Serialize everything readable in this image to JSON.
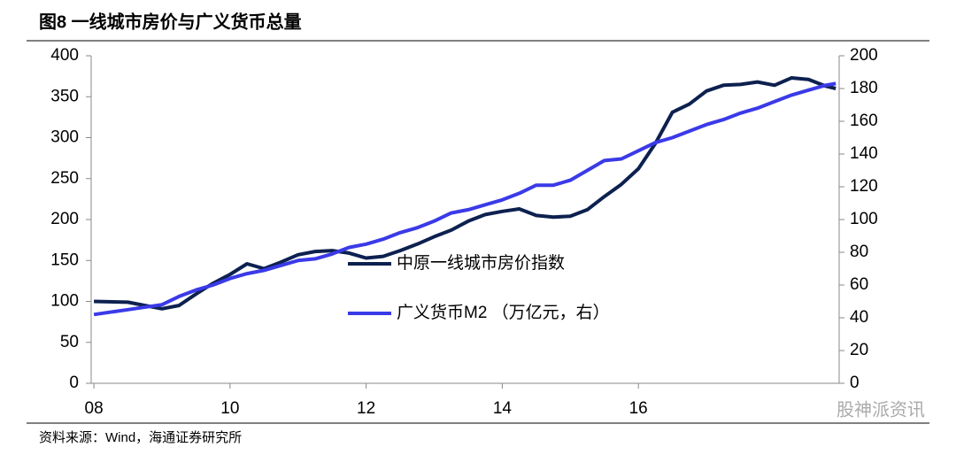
{
  "chart_data": {
    "type": "line",
    "title": "图8  一线城市房价与广义货币总量",
    "source": "资料来源：Wind，海通证券研究所",
    "watermark": "股神派资讯",
    "x": [
      8,
      8.5,
      9,
      9.25,
      9.5,
      9.75,
      10,
      10.25,
      10.5,
      10.75,
      11,
      11.25,
      11.5,
      11.75,
      12,
      12.25,
      12.5,
      12.75,
      13,
      13.25,
      13.5,
      13.75,
      14,
      14.25,
      14.5,
      14.75,
      15,
      15.25,
      15.5,
      15.75,
      16,
      16.25,
      16.5,
      16.75,
      17,
      17.25,
      17.5,
      17.75,
      18,
      18.25,
      18.5,
      18.75,
      18.9
    ],
    "series": [
      {
        "name": "中原一线城市房价指数",
        "color": "#0d2150",
        "values": [
          100,
          99,
          91,
          95,
          109,
          122,
          133,
          146,
          140,
          148,
          157,
          161,
          162,
          159,
          153,
          155,
          162,
          170,
          179,
          187,
          198,
          206,
          210,
          213,
          205,
          203,
          204,
          212,
          228,
          243,
          262,
          293,
          331,
          341,
          357,
          364,
          365,
          368,
          364,
          373,
          371,
          363,
          360
        ]
      },
      {
        "name": "广义货币M2 （万亿元，右）",
        "color": "#3a3ae8",
        "axis": "y2",
        "values": [
          42,
          45,
          48,
          53,
          57,
          60,
          64,
          67,
          69,
          72,
          75,
          76,
          79,
          83,
          85,
          88,
          92,
          95,
          99,
          104,
          106,
          109,
          112,
          116,
          121,
          121,
          124,
          130,
          136,
          137,
          142,
          147,
          150,
          154,
          158,
          161,
          165,
          168,
          172,
          176,
          179,
          182,
          183
        ]
      }
    ],
    "xlim": [
      7.96,
      18.95
    ],
    "xticks": [
      {
        "value": 8,
        "label": "08"
      },
      {
        "value": 10,
        "label": "10"
      },
      {
        "value": 12,
        "label": "12"
      },
      {
        "value": 14,
        "label": "14"
      },
      {
        "value": 16,
        "label": "16"
      }
    ],
    "ylim": [
      0,
      400
    ],
    "yticks": [
      0,
      50,
      100,
      150,
      200,
      250,
      300,
      350,
      400
    ],
    "y2lim": [
      0,
      200
    ],
    "y2ticks": [
      0,
      20,
      40,
      60,
      80,
      100,
      120,
      140,
      160,
      180,
      200
    ]
  }
}
